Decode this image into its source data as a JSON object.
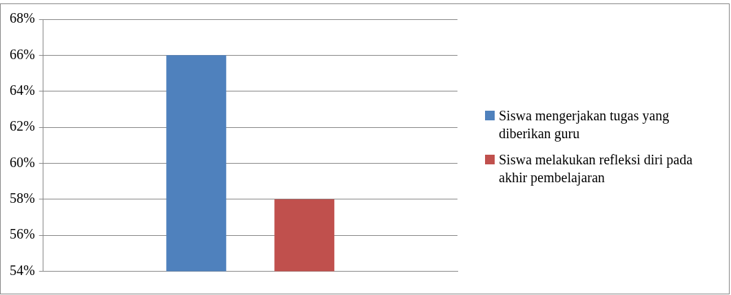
{
  "chart_data": {
    "type": "bar",
    "categories": [
      null
    ],
    "series": [
      {
        "name": "Siswa mengerjakan tugas yang diberikan guru",
        "color": "#4f81bd",
        "values": [
          66
        ]
      },
      {
        "name": "Siswa melakukan refleksi diri pada akhir pembelajaran",
        "color": "#c0504d",
        "values": [
          58
        ]
      }
    ],
    "ylim": [
      54,
      68
    ],
    "yticks": [
      {
        "value": 54,
        "label": "54%"
      },
      {
        "value": 56,
        "label": "56%"
      },
      {
        "value": 58,
        "label": "58%"
      },
      {
        "value": 60,
        "label": "60%"
      },
      {
        "value": 62,
        "label": "62%"
      },
      {
        "value": 64,
        "label": "64%"
      },
      {
        "value": 66,
        "label": "66%"
      },
      {
        "value": 68,
        "label": "68%"
      }
    ],
    "grid": "y",
    "legend": "right"
  }
}
